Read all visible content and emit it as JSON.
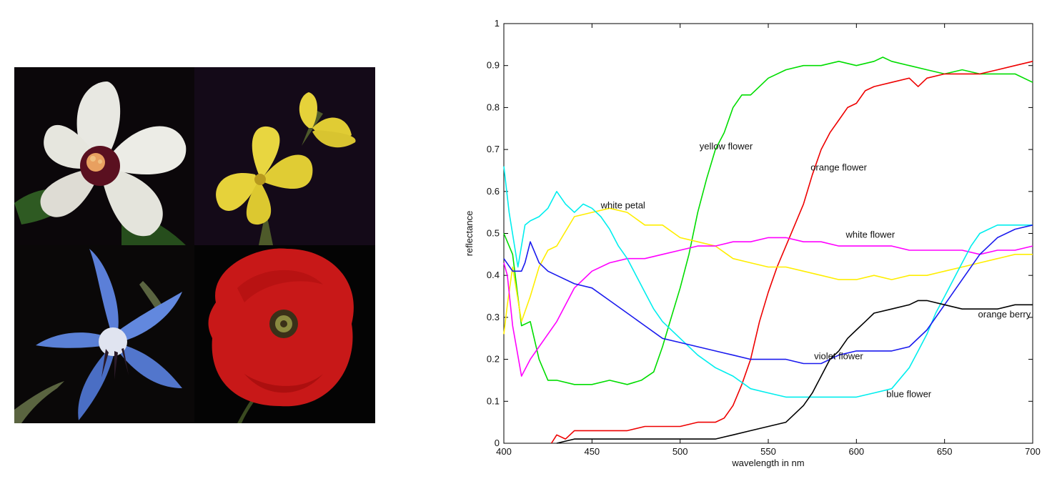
{
  "photos": [
    {
      "name": "white-hibiscus-photo",
      "colors": {
        "bg": "#0b070a",
        "petal": "#ecece6",
        "center": "#5a1020",
        "stamen": "#e8a060",
        "leaf": "#2e5a22"
      }
    },
    {
      "name": "yellow-primrose-photo",
      "colors": {
        "bg": "#140a18",
        "petal": "#e6d23a",
        "center": "#b89a1e",
        "leaf": "#4e5a2a"
      }
    },
    {
      "name": "blue-borage-photo",
      "colors": {
        "bg": "#0a0808",
        "petal": "#5b7fd8",
        "center": "#e0e4f0",
        "stamen": "#2a1a28",
        "leaf": "#5a6440"
      }
    },
    {
      "name": "red-poppy-photo",
      "colors": {
        "bg": "#040404",
        "petal": "#c81818",
        "center": "#3a3018",
        "stamen": "#8a8a40"
      }
    }
  ],
  "chart_data": {
    "type": "line",
    "title": "",
    "xlabel": "wavelength in nm",
    "ylabel": "reflectance",
    "xlim": [
      400,
      700
    ],
    "ylim": [
      0,
      1
    ],
    "xticks": [
      "400",
      "450",
      "500",
      "550",
      "600",
      "650",
      "700"
    ],
    "yticks": [
      "0",
      "0.1",
      "0.2",
      "0.3",
      "0.4",
      "0.5",
      "0.6",
      "0.7",
      "0.8",
      "0.9",
      "1"
    ],
    "grid": false,
    "series": [
      {
        "name": "yellow flower",
        "color": "#00dd00",
        "label_at": [
          511,
          0.7
        ],
        "points": [
          [
            400,
            0.5
          ],
          [
            405,
            0.45
          ],
          [
            410,
            0.28
          ],
          [
            415,
            0.29
          ],
          [
            420,
            0.2
          ],
          [
            425,
            0.15
          ],
          [
            430,
            0.15
          ],
          [
            440,
            0.14
          ],
          [
            450,
            0.14
          ],
          [
            460,
            0.15
          ],
          [
            470,
            0.14
          ],
          [
            478,
            0.15
          ],
          [
            485,
            0.17
          ],
          [
            490,
            0.23
          ],
          [
            495,
            0.3
          ],
          [
            500,
            0.37
          ],
          [
            505,
            0.45
          ],
          [
            510,
            0.55
          ],
          [
            515,
            0.63
          ],
          [
            520,
            0.7
          ],
          [
            525,
            0.74
          ],
          [
            530,
            0.8
          ],
          [
            535,
            0.83
          ],
          [
            540,
            0.83
          ],
          [
            545,
            0.85
          ],
          [
            550,
            0.87
          ],
          [
            560,
            0.89
          ],
          [
            570,
            0.9
          ],
          [
            580,
            0.9
          ],
          [
            590,
            0.91
          ],
          [
            600,
            0.9
          ],
          [
            610,
            0.91
          ],
          [
            615,
            0.92
          ],
          [
            620,
            0.91
          ],
          [
            630,
            0.9
          ],
          [
            640,
            0.89
          ],
          [
            650,
            0.88
          ],
          [
            660,
            0.89
          ],
          [
            670,
            0.88
          ],
          [
            680,
            0.88
          ],
          [
            690,
            0.88
          ],
          [
            700,
            0.86
          ]
        ]
      },
      {
        "name": "orange flower",
        "color": "#ee0000",
        "label_at": [
          574,
          0.65
        ],
        "points": [
          [
            427,
            0.0
          ],
          [
            430,
            0.02
          ],
          [
            435,
            0.01
          ],
          [
            440,
            0.03
          ],
          [
            450,
            0.03
          ],
          [
            460,
            0.03
          ],
          [
            470,
            0.03
          ],
          [
            480,
            0.04
          ],
          [
            490,
            0.04
          ],
          [
            500,
            0.04
          ],
          [
            510,
            0.05
          ],
          [
            520,
            0.05
          ],
          [
            525,
            0.06
          ],
          [
            530,
            0.09
          ],
          [
            535,
            0.14
          ],
          [
            540,
            0.2
          ],
          [
            545,
            0.29
          ],
          [
            550,
            0.36
          ],
          [
            555,
            0.42
          ],
          [
            560,
            0.47
          ],
          [
            565,
            0.52
          ],
          [
            570,
            0.57
          ],
          [
            575,
            0.64
          ],
          [
            580,
            0.7
          ],
          [
            585,
            0.74
          ],
          [
            590,
            0.77
          ],
          [
            595,
            0.8
          ],
          [
            600,
            0.81
          ],
          [
            605,
            0.84
          ],
          [
            610,
            0.85
          ],
          [
            620,
            0.86
          ],
          [
            630,
            0.87
          ],
          [
            635,
            0.85
          ],
          [
            640,
            0.87
          ],
          [
            650,
            0.88
          ],
          [
            660,
            0.88
          ],
          [
            670,
            0.88
          ],
          [
            680,
            0.89
          ],
          [
            690,
            0.9
          ],
          [
            700,
            0.91
          ]
        ]
      },
      {
        "name": "white petal",
        "color": "#ffee00",
        "label_at": [
          455,
          0.56
        ],
        "points": [
          [
            400,
            0.26
          ],
          [
            402,
            0.33
          ],
          [
            405,
            0.42
          ],
          [
            410,
            0.29
          ],
          [
            415,
            0.35
          ],
          [
            420,
            0.42
          ],
          [
            425,
            0.46
          ],
          [
            430,
            0.47
          ],
          [
            440,
            0.54
          ],
          [
            450,
            0.55
          ],
          [
            460,
            0.56
          ],
          [
            470,
            0.55
          ],
          [
            480,
            0.52
          ],
          [
            490,
            0.52
          ],
          [
            500,
            0.49
          ],
          [
            510,
            0.48
          ],
          [
            520,
            0.47
          ],
          [
            530,
            0.44
          ],
          [
            540,
            0.43
          ],
          [
            550,
            0.42
          ],
          [
            560,
            0.42
          ],
          [
            570,
            0.41
          ],
          [
            580,
            0.4
          ],
          [
            590,
            0.39
          ],
          [
            600,
            0.39
          ],
          [
            610,
            0.4
          ],
          [
            620,
            0.39
          ],
          [
            630,
            0.4
          ],
          [
            640,
            0.4
          ],
          [
            650,
            0.41
          ],
          [
            660,
            0.42
          ],
          [
            670,
            0.43
          ],
          [
            680,
            0.44
          ],
          [
            690,
            0.45
          ],
          [
            700,
            0.45
          ]
        ]
      },
      {
        "name": "white flower",
        "color": "#ff00ff",
        "label_at": [
          594,
          0.49
        ],
        "points": [
          [
            400,
            0.43
          ],
          [
            402,
            0.4
          ],
          [
            405,
            0.28
          ],
          [
            410,
            0.16
          ],
          [
            415,
            0.2
          ],
          [
            420,
            0.23
          ],
          [
            430,
            0.29
          ],
          [
            440,
            0.37
          ],
          [
            450,
            0.41
          ],
          [
            460,
            0.43
          ],
          [
            470,
            0.44
          ],
          [
            480,
            0.44
          ],
          [
            490,
            0.45
          ],
          [
            500,
            0.46
          ],
          [
            510,
            0.47
          ],
          [
            520,
            0.47
          ],
          [
            530,
            0.48
          ],
          [
            540,
            0.48
          ],
          [
            550,
            0.49
          ],
          [
            560,
            0.49
          ],
          [
            570,
            0.48
          ],
          [
            580,
            0.48
          ],
          [
            590,
            0.47
          ],
          [
            600,
            0.47
          ],
          [
            610,
            0.47
          ],
          [
            620,
            0.47
          ],
          [
            630,
            0.46
          ],
          [
            640,
            0.46
          ],
          [
            650,
            0.46
          ],
          [
            660,
            0.46
          ],
          [
            670,
            0.45
          ],
          [
            680,
            0.46
          ],
          [
            690,
            0.46
          ],
          [
            700,
            0.47
          ]
        ]
      },
      {
        "name": "blue flower",
        "color": "#00eeee",
        "label_at": [
          617,
          0.11
        ],
        "points": [
          [
            400,
            0.66
          ],
          [
            403,
            0.55
          ],
          [
            408,
            0.42
          ],
          [
            412,
            0.52
          ],
          [
            415,
            0.53
          ],
          [
            420,
            0.54
          ],
          [
            425,
            0.56
          ],
          [
            430,
            0.6
          ],
          [
            435,
            0.57
          ],
          [
            440,
            0.55
          ],
          [
            445,
            0.57
          ],
          [
            450,
            0.56
          ],
          [
            455,
            0.54
          ],
          [
            460,
            0.51
          ],
          [
            465,
            0.47
          ],
          [
            470,
            0.44
          ],
          [
            475,
            0.4
          ],
          [
            480,
            0.36
          ],
          [
            485,
            0.32
          ],
          [
            490,
            0.29
          ],
          [
            500,
            0.25
          ],
          [
            510,
            0.21
          ],
          [
            520,
            0.18
          ],
          [
            530,
            0.16
          ],
          [
            540,
            0.13
          ],
          [
            550,
            0.12
          ],
          [
            560,
            0.11
          ],
          [
            570,
            0.11
          ],
          [
            580,
            0.11
          ],
          [
            590,
            0.11
          ],
          [
            600,
            0.11
          ],
          [
            610,
            0.12
          ],
          [
            620,
            0.13
          ],
          [
            630,
            0.18
          ],
          [
            635,
            0.22
          ],
          [
            640,
            0.26
          ],
          [
            645,
            0.31
          ],
          [
            650,
            0.35
          ],
          [
            655,
            0.39
          ],
          [
            660,
            0.43
          ],
          [
            665,
            0.47
          ],
          [
            670,
            0.5
          ],
          [
            675,
            0.51
          ],
          [
            680,
            0.52
          ],
          [
            690,
            0.52
          ],
          [
            700,
            0.52
          ]
        ]
      },
      {
        "name": "violet flower",
        "color": "#1a1aee",
        "label_at": [
          576,
          0.2
        ],
        "points": [
          [
            400,
            0.44
          ],
          [
            405,
            0.41
          ],
          [
            410,
            0.41
          ],
          [
            412,
            0.43
          ],
          [
            415,
            0.48
          ],
          [
            418,
            0.45
          ],
          [
            420,
            0.43
          ],
          [
            425,
            0.41
          ],
          [
            430,
            0.4
          ],
          [
            440,
            0.38
          ],
          [
            450,
            0.37
          ],
          [
            460,
            0.34
          ],
          [
            470,
            0.31
          ],
          [
            480,
            0.28
          ],
          [
            490,
            0.25
          ],
          [
            500,
            0.24
          ],
          [
            510,
            0.23
          ],
          [
            520,
            0.22
          ],
          [
            530,
            0.21
          ],
          [
            540,
            0.2
          ],
          [
            550,
            0.2
          ],
          [
            560,
            0.2
          ],
          [
            570,
            0.19
          ],
          [
            580,
            0.19
          ],
          [
            590,
            0.21
          ],
          [
            600,
            0.22
          ],
          [
            610,
            0.22
          ],
          [
            620,
            0.22
          ],
          [
            630,
            0.23
          ],
          [
            640,
            0.27
          ],
          [
            650,
            0.33
          ],
          [
            660,
            0.39
          ],
          [
            670,
            0.45
          ],
          [
            680,
            0.49
          ],
          [
            690,
            0.51
          ],
          [
            700,
            0.52
          ]
        ]
      },
      {
        "name": "orange berry",
        "color": "#000000",
        "label_at": [
          669,
          0.3
        ],
        "points": [
          [
            430,
            0.0
          ],
          [
            440,
            0.01
          ],
          [
            450,
            0.01
          ],
          [
            460,
            0.01
          ],
          [
            470,
            0.01
          ],
          [
            480,
            0.01
          ],
          [
            490,
            0.01
          ],
          [
            500,
            0.01
          ],
          [
            510,
            0.01
          ],
          [
            520,
            0.01
          ],
          [
            530,
            0.02
          ],
          [
            540,
            0.03
          ],
          [
            550,
            0.04
          ],
          [
            560,
            0.05
          ],
          [
            565,
            0.07
          ],
          [
            570,
            0.09
          ],
          [
            575,
            0.12
          ],
          [
            580,
            0.16
          ],
          [
            585,
            0.2
          ],
          [
            590,
            0.22
          ],
          [
            595,
            0.25
          ],
          [
            600,
            0.27
          ],
          [
            605,
            0.29
          ],
          [
            610,
            0.31
          ],
          [
            620,
            0.32
          ],
          [
            630,
            0.33
          ],
          [
            635,
            0.34
          ],
          [
            640,
            0.34
          ],
          [
            650,
            0.33
          ],
          [
            660,
            0.32
          ],
          [
            670,
            0.32
          ],
          [
            680,
            0.32
          ],
          [
            690,
            0.33
          ],
          [
            700,
            0.33
          ]
        ]
      }
    ]
  }
}
